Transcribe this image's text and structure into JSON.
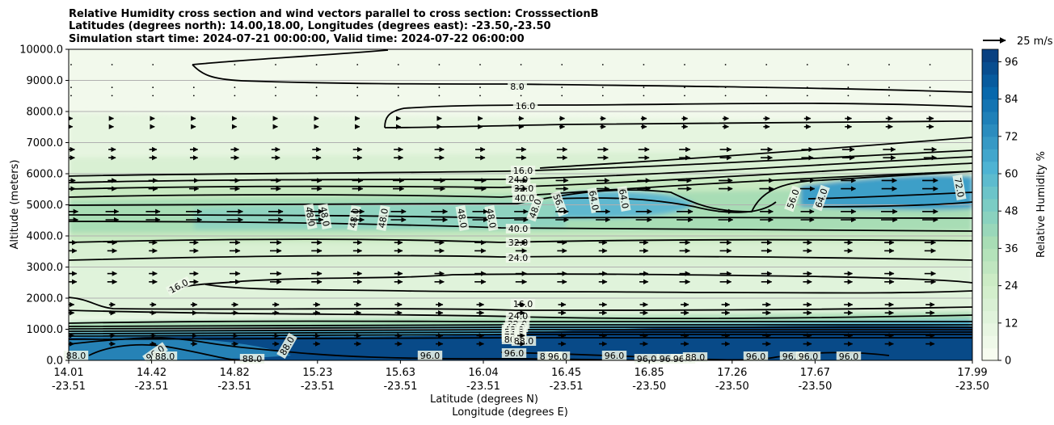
{
  "chart_data": {
    "type": "contour",
    "title_lines": [
      "Relative Humidity cross section and wind vectors parallel to cross section: CrosssectionB",
      "Latitudes (degrees north): 14.00,18.00, Longitudes (degrees east): -23.50,-23.50",
      "Simulation start time: 2024-07-21 00:00:00, Valid time: 2024-07-22 06:00:00"
    ],
    "ylabel": "Altitude (meters)",
    "xlabel_lat": "Latitude (degrees N)",
    "xlabel_lon": "Longitude (degrees E)",
    "ylim": [
      0,
      10000
    ],
    "y_ticks": [
      "0.0",
      "1000.0",
      "2000.0",
      "3000.0",
      "4000.0",
      "5000.0",
      "6000.0",
      "7000.0",
      "8000.0",
      "9000.0",
      "10000.0"
    ],
    "x_ticks_lat": [
      "14.01",
      "14.42",
      "14.82",
      "15.23",
      "15.63",
      "16.04",
      "16.45",
      "16.85",
      "17.26",
      "17.67",
      "17.99"
    ],
    "x_ticks_lon": [
      "-23.51",
      "-23.51",
      "-23.51",
      "-23.51",
      "-23.51",
      "-23.51",
      "-23.51",
      "-23.50",
      "-23.50",
      "-23.50",
      "-23.50"
    ],
    "colorbar": {
      "label": "Relative Humidity %",
      "min": 0,
      "max": 100,
      "ticks": [
        "0",
        "12",
        "24",
        "36",
        "48",
        "60",
        "72",
        "84",
        "96"
      ],
      "levels": 25,
      "colors": [
        "#f7fcf0",
        "#e0f3db",
        "#ccebc5",
        "#a8ddb5",
        "#7bccc4",
        "#4eb3d3",
        "#2b8cbe",
        "#0868ac",
        "#084081"
      ]
    },
    "quiver_key": {
      "label": "25 m/s"
    },
    "contour_labels": [
      "8.0",
      "16.0",
      "16.0",
      "24.0",
      "32.0",
      "40.0",
      "48.0",
      "48.0",
      "48.0",
      "48.0",
      "48.0",
      "48.0",
      "48.0",
      "56.0",
      "64.0",
      "64.0",
      "56.0",
      "64.0",
      "72.0",
      "40.0",
      "32.0",
      "24.0",
      "16.0",
      "16.0",
      "24.0",
      "32.0",
      "40.0",
      "48.0",
      "56.0",
      "64.0",
      "72.0",
      "80.0",
      "88.0",
      "96.0",
      "88.0",
      "96.0",
      "88.0",
      "96.0",
      "88.0",
      "96.0",
      "96.0",
      "96.0",
      "96.0",
      "96.0",
      "96.0",
      "96.0",
      "96.0",
      "96.0",
      "88.0",
      "88.0",
      "88.0"
    ]
  }
}
